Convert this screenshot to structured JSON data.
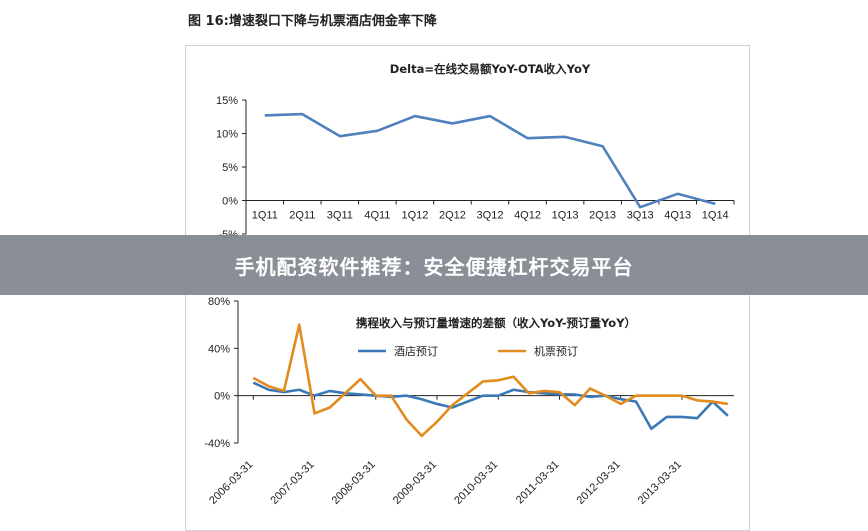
{
  "page": {
    "figure_title": "图 16:增速裂口下降与机票酒店佣金率下降",
    "banner_text": "手机配资软件推荐：安全便捷杠杆交易平台"
  },
  "chart_data": [
    {
      "type": "line",
      "title": "Delta=在线交易额YoY-OTA收入YoY",
      "categories": [
        "1Q11",
        "2Q11",
        "3Q11",
        "4Q11",
        "1Q12",
        "2Q12",
        "3Q12",
        "4Q12",
        "1Q13",
        "2Q13",
        "3Q13",
        "4Q13",
        "1Q14"
      ],
      "series": [
        {
          "color": "#4e81bd",
          "values": [
            12.7,
            12.9,
            9.6,
            10.4,
            12.6,
            11.5,
            12.6,
            9.3,
            9.5,
            8.1,
            -1.0,
            1.0,
            -0.5
          ]
        }
      ],
      "y_ticks": [
        "15%",
        "10%",
        "5%",
        "0%",
        "-5%"
      ],
      "ylim": [
        -5,
        15
      ],
      "grid": false
    },
    {
      "type": "line",
      "title": "携程收入与预订量增速的差额（收入YoY-预订量YoY）",
      "x_tick_labels": [
        "2006-03-31",
        "2007-03-31",
        "2008-03-31",
        "2009-03-31",
        "2010-03-31",
        "2011-03-31",
        "2012-03-31",
        "2013-03-31"
      ],
      "y_ticks": [
        "80%",
        "40%",
        "0%",
        "-40%"
      ],
      "ylim": [
        -40,
        80
      ],
      "legend_position": "top",
      "grid": false,
      "series": [
        {
          "name": "酒店预订",
          "color": "#3a78b6",
          "x": [
            2006.25,
            2006.5,
            2006.75,
            2007.0,
            2007.25,
            2007.5,
            2007.75,
            2008.0,
            2008.25,
            2008.5,
            2008.75,
            2009.0,
            2009.25,
            2009.5,
            2009.75,
            2010.0,
            2010.25,
            2010.5,
            2010.75,
            2011.0,
            2011.25,
            2011.5,
            2011.75,
            2012.0,
            2012.25,
            2012.5,
            2012.75,
            2013.0,
            2013.25,
            2013.5,
            2013.75,
            2014.0
          ],
          "values": [
            11,
            5,
            3,
            5,
            0,
            4,
            2,
            1,
            0,
            -1,
            0,
            -3,
            -7,
            -10,
            -5,
            0,
            0,
            5,
            3,
            2,
            1,
            1,
            -1,
            0,
            -3,
            -5,
            -28,
            -18,
            -18,
            -19,
            -5,
            -17
          ]
        },
        {
          "name": "机票预订",
          "color": "#e28b1e",
          "x": [
            2006.25,
            2006.5,
            2006.75,
            2007.0,
            2007.25,
            2007.5,
            2007.75,
            2008.0,
            2008.25,
            2008.5,
            2008.75,
            2009.0,
            2009.25,
            2009.5,
            2009.75,
            2010.0,
            2010.25,
            2010.5,
            2010.75,
            2011.0,
            2011.25,
            2011.5,
            2011.75,
            2012.0,
            2012.25,
            2012.5,
            2012.75,
            2013.0,
            2013.25,
            2013.5,
            2013.75,
            2014.0
          ],
          "values": [
            15,
            8,
            4,
            60,
            -15,
            -10,
            2,
            14,
            0,
            0,
            -20,
            -34,
            -22,
            -8,
            2,
            12,
            13,
            16,
            2,
            4,
            3,
            -8,
            6,
            0,
            -7,
            0,
            0,
            0,
            0,
            -4,
            -5,
            -7
          ]
        }
      ]
    }
  ],
  "colors": {
    "axis": "#222222",
    "banner_bg": "#80868e"
  }
}
